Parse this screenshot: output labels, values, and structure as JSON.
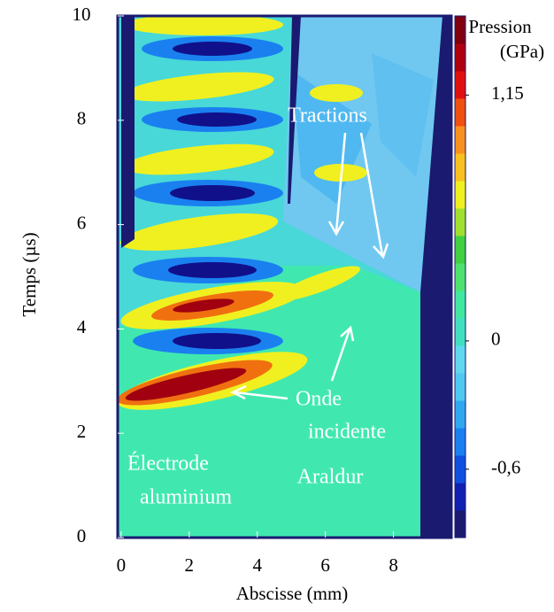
{
  "chart_data": {
    "type": "contour",
    "x_label": "Abscisse (mm)",
    "y_label": "Temps (µs)",
    "xlim": [
      -0.1,
      9.7
    ],
    "ylim": [
      0,
      10
    ],
    "xticks": [
      0,
      2,
      4,
      6,
      8
    ],
    "yticks": [
      0,
      2,
      4,
      6,
      8,
      10
    ],
    "colorbar": {
      "label": [
        "Pression",
        "(GPa)"
      ],
      "clim": [
        -0.92,
        1.52
      ],
      "ticks": [
        {
          "value": 1.15,
          "label": "1,15"
        },
        0,
        {
          "value": -0.6,
          "label": "-0,6"
        }
      ],
      "colormap": [
        "#1a1a70",
        "#1020b0",
        "#1050e0",
        "#1a80f0",
        "#30a8f0",
        "#50c8f0",
        "#60d8f0",
        "#40e0c0",
        "#40e8a0",
        "#50e070",
        "#40d040",
        "#a0e030",
        "#f0f020",
        "#f8c020",
        "#f89020",
        "#f05010",
        "#e01010",
        "#b00010",
        "#800010"
      ]
    },
    "annotations": [
      "Tractions",
      "Onde",
      "incidente",
      "Électrode",
      "aluminium",
      "Araldur"
    ]
  }
}
